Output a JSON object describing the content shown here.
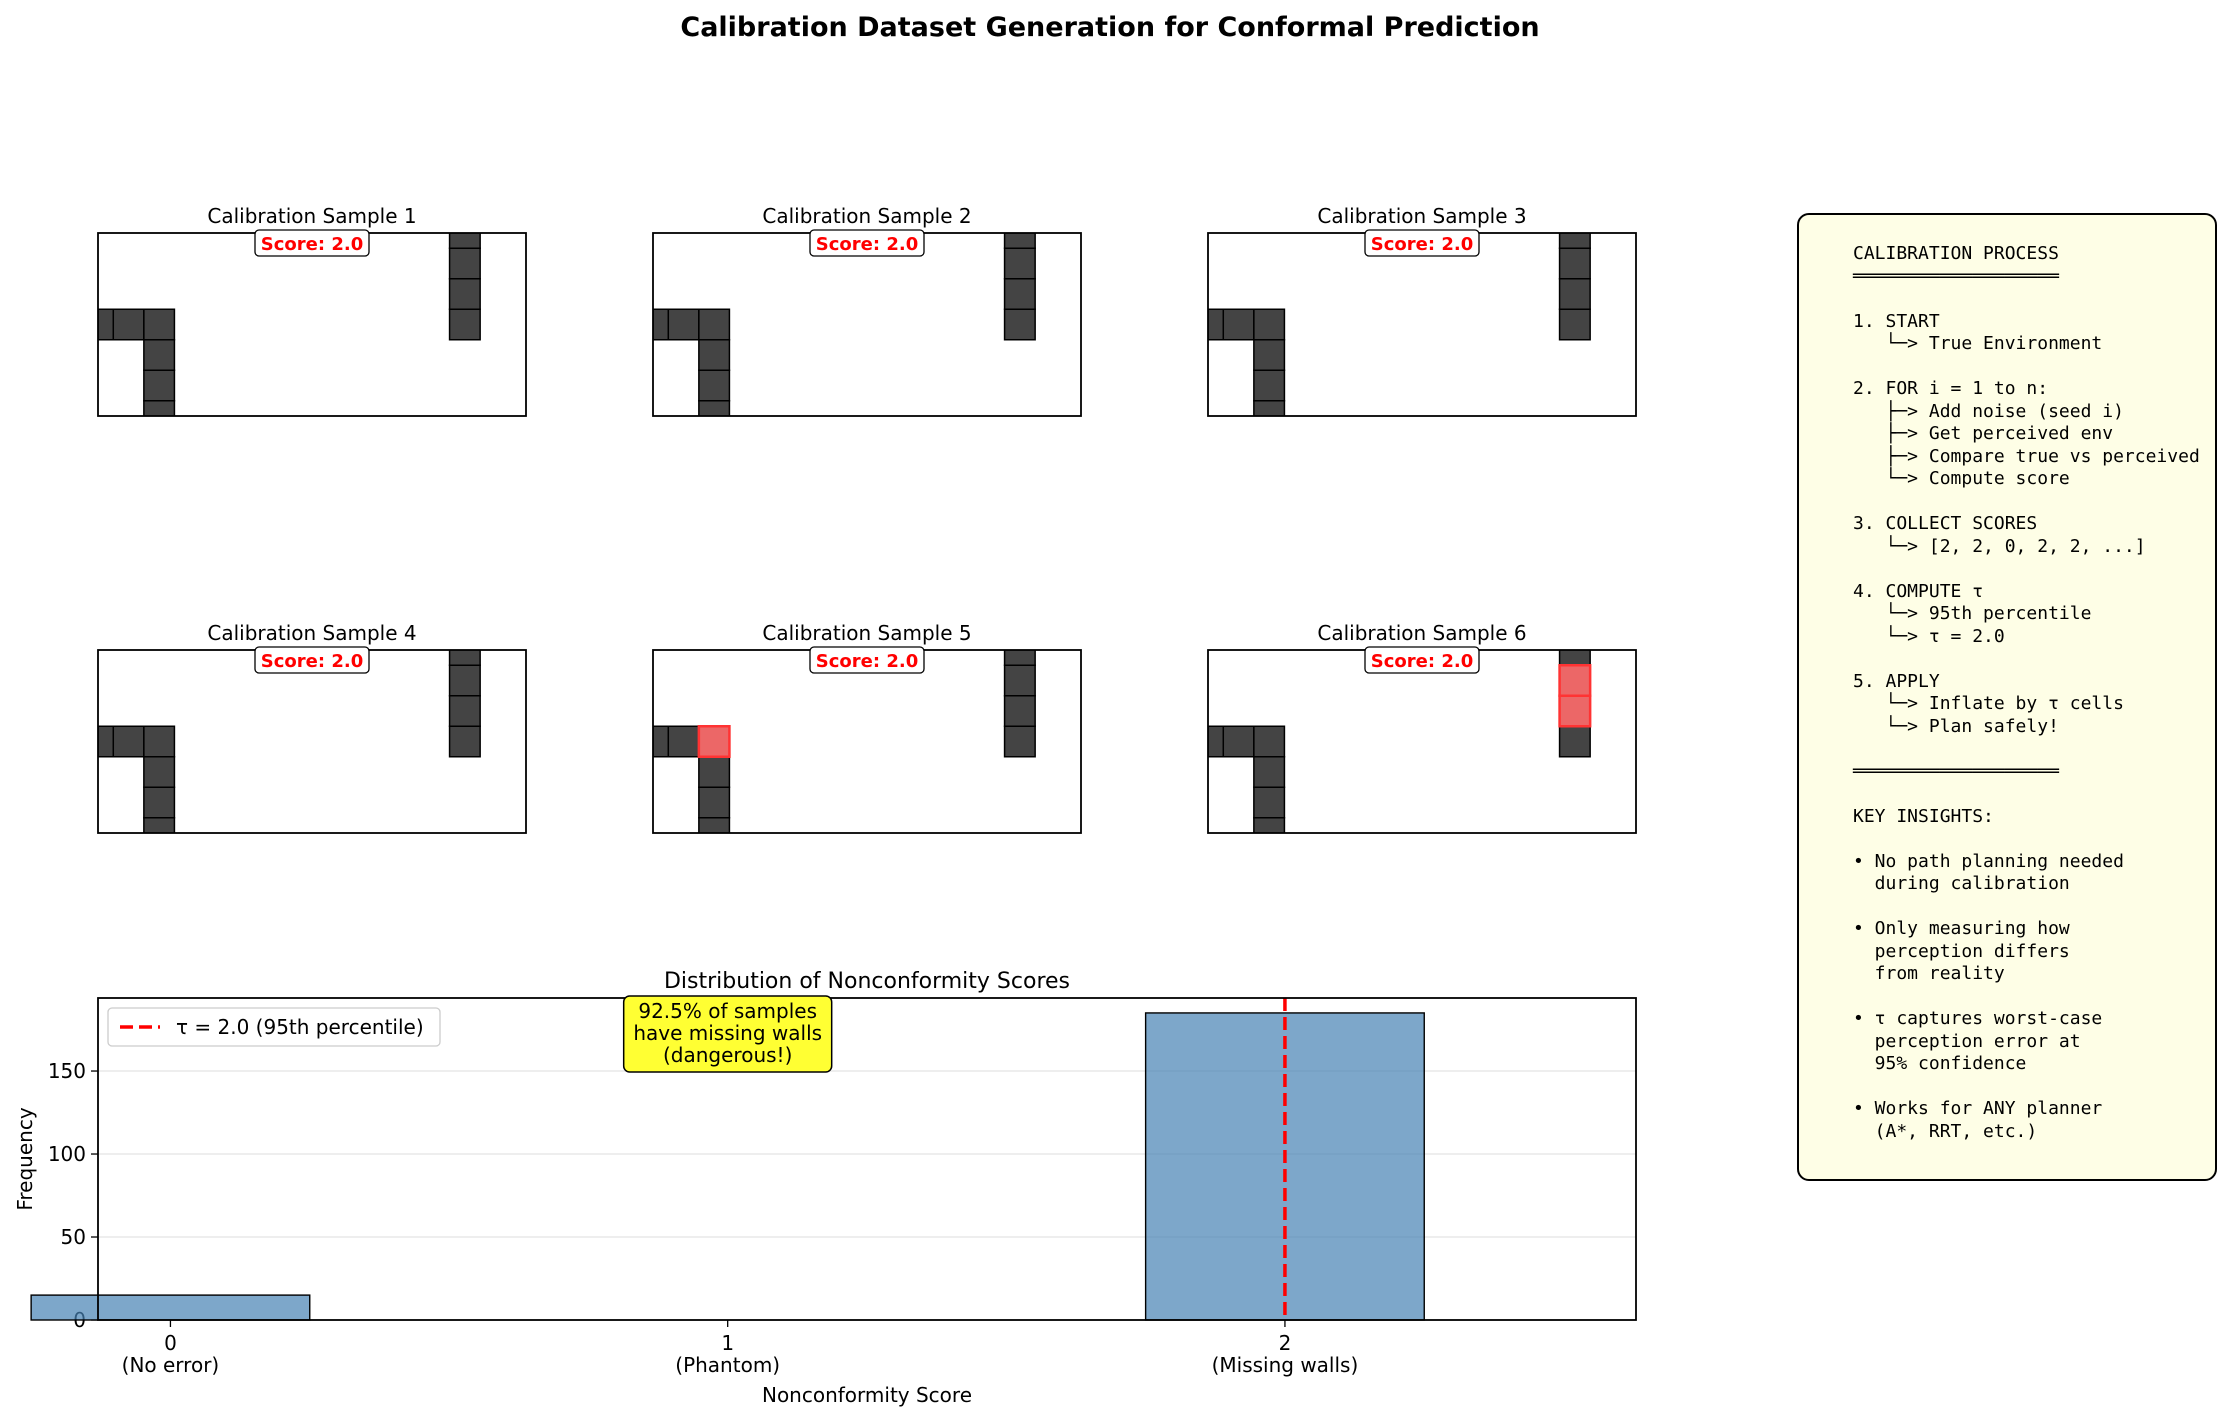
{
  "figure_title": "Calibration Dataset Generation for Conformal Prediction",
  "samples": [
    {
      "title": "Calibration Sample 1",
      "score_label": "Score: 2.0",
      "highlight_cells": []
    },
    {
      "title": "Calibration Sample 2",
      "score_label": "Score: 2.0",
      "highlight_cells": []
    },
    {
      "title": "Calibration Sample 3",
      "score_label": "Score: 2.0",
      "highlight_cells": []
    },
    {
      "title": "Calibration Sample 4",
      "score_label": "Score: 2.0",
      "highlight_cells": []
    },
    {
      "title": "Calibration Sample 5",
      "score_label": "Score: 2.0",
      "highlight_cells": [
        [
          1.5,
          2.5
        ]
      ]
    },
    {
      "title": "Calibration Sample 6",
      "score_label": "Score: 2.0",
      "highlight_cells": [
        [
          11.5,
          4.5
        ],
        [
          11.5,
          3.5
        ]
      ]
    }
  ],
  "grid": {
    "xlim": [
      0,
      14
    ],
    "ylim": [
      0,
      6
    ],
    "wall_cells": [
      [
        0,
        2.5
      ],
      [
        0.5,
        2.5
      ],
      [
        1.5,
        2.5
      ],
      [
        1.5,
        1.5
      ],
      [
        1.5,
        0.5
      ],
      [
        1.5,
        -0.5
      ],
      [
        11.5,
        5.5
      ],
      [
        11.5,
        4.5
      ],
      [
        11.5,
        3.5
      ],
      [
        11.5,
        2.5
      ]
    ]
  },
  "colors": {
    "wall": "#444444",
    "highlight": "#ff6b6b",
    "bar": "#4682b4",
    "tau_line": "#ff0000",
    "annotation_bg": "#ffff33",
    "panel_bg": "#fefee6"
  },
  "chart_data": {
    "type": "bar",
    "title": "Distribution of Nonconformity Scores",
    "xlabel": "Nonconformity Score",
    "ylabel": "Frequency",
    "x": [
      0,
      1,
      2
    ],
    "tick_labels": [
      [
        "0",
        "(No error)"
      ],
      [
        "1",
        "(Phantom)"
      ],
      [
        "2",
        "(Missing walls)"
      ]
    ],
    "values": [
      15,
      0,
      185
    ],
    "xlim": [
      -0.13,
      2.63
    ],
    "ylim": [
      0,
      194
    ],
    "yticks": [
      0,
      50,
      100,
      150
    ],
    "bar_width": 0.5,
    "grid": "y",
    "tau": 2.0,
    "legend_label": "τ = 2.0 (95th percentile)",
    "legend_position": "upper-left",
    "annotation": [
      "92.5% of samples",
      "have missing walls",
      "(dangerous!)"
    ],
    "annotation_at": {
      "x": 1,
      "y": 170
    }
  },
  "panel": {
    "lines": [
      "CALIBRATION PROCESS",
      "═══════════════════",
      "",
      "1. START",
      "   └─> True Environment",
      "",
      "2. FOR i = 1 to n:",
      "   ├─> Add noise (seed i)",
      "   ├─> Get perceived env",
      "   ├─> Compare true vs perceived",
      "   └─> Compute score",
      "",
      "3. COLLECT SCORES",
      "   └─> [2, 2, 0, 2, 2, ...]",
      "",
      "4. COMPUTE τ",
      "   └─> 95th percentile",
      "   └─> τ = 2.0",
      "",
      "5. APPLY",
      "   └─> Inflate by τ cells",
      "   └─> Plan safely!",
      "",
      "═══════════════════",
      "",
      "KEY INSIGHTS:",
      "",
      "• No path planning needed",
      "  during calibration",
      "",
      "• Only measuring how",
      "  perception differs",
      "  from reality",
      "",
      "• τ captures worst-case",
      "  perception error at",
      "  95% confidence",
      "",
      "• Works for ANY planner",
      "  (A*, RRT, etc.)"
    ]
  }
}
